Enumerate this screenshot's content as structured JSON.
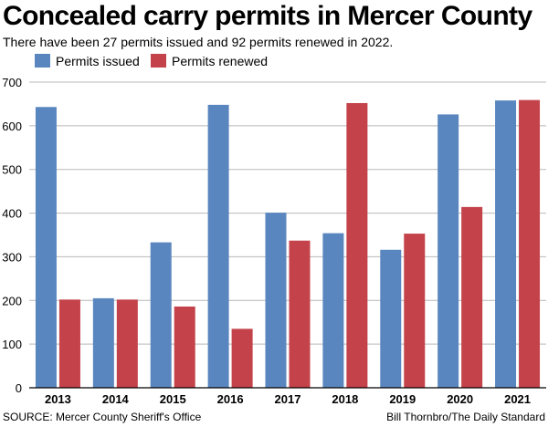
{
  "header": {
    "title": "Concealed carry permits in Mercer County",
    "subtitle": "There have been 27 permits issued and 92 permits renewed in 2022."
  },
  "footer": {
    "source": "SOURCE: Mercer County Sheriff's Office",
    "credit": "Bill Thornbro/The Daily Standard"
  },
  "chart_data": {
    "type": "bar",
    "title": "Concealed carry permits in Mercer County",
    "subtitle": "There have been 27 permits issued and 92 permits renewed in 2022.",
    "xlabel": "",
    "ylabel": "",
    "ylim": [
      0,
      700
    ],
    "yticks": [
      0,
      100,
      200,
      300,
      400,
      500,
      600,
      700
    ],
    "grid": true,
    "legend_position": "top-left",
    "categories": [
      "2013",
      "2014",
      "2015",
      "2016",
      "2017",
      "2018",
      "2019",
      "2020",
      "2021"
    ],
    "series": [
      {
        "name": "Permits issued",
        "color": "#5a86bf",
        "values": [
          643,
          205,
          333,
          648,
          401,
          354,
          316,
          626,
          658
        ]
      },
      {
        "name": "Permits renewed",
        "color": "#c4424a",
        "values": [
          202,
          202,
          186,
          135,
          337,
          652,
          353,
          414,
          659
        ]
      }
    ]
  }
}
